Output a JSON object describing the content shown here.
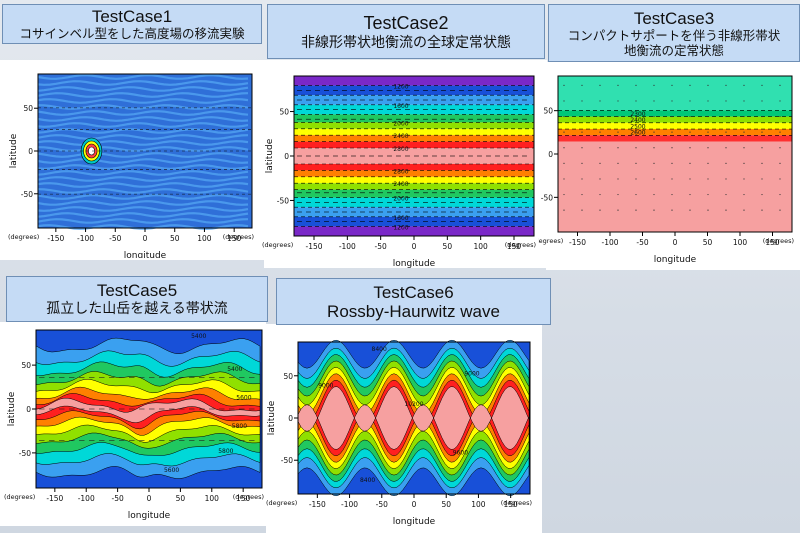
{
  "chart_data": [
    {
      "id": "tc1",
      "type": "heatmap",
      "title": "TestCase1",
      "subtitle": "コサインベル型をした高度場の移流実験",
      "xlabel": "longitude",
      "ylabel": "latitude",
      "x_unit": "(degrees)",
      "y_unit": "(degrees)",
      "xlim": [
        -180,
        180
      ],
      "ylim": [
        -90,
        90
      ],
      "xticks": [
        "-150",
        "-100",
        "-50",
        "0",
        "50",
        "100",
        "150"
      ],
      "yticks": [
        "50",
        "0",
        "-50"
      ],
      "contour_labels": [],
      "colors": [
        "#2f6fd8",
        "#4fa0f0",
        "#58b8f8",
        "#00c8c8",
        "#ffff00",
        "#ff4040"
      ]
    },
    {
      "id": "tc2",
      "type": "heatmap",
      "title": "TestCase2",
      "subtitle": "非線形帯状地衡流の全球定常状態",
      "xlabel": "longitude",
      "ylabel": "latitude",
      "x_unit": "(degrees)",
      "y_unit": "(degrees)",
      "xlim": [
        -180,
        180
      ],
      "ylim": [
        -90,
        90
      ],
      "xticks": [
        "-150",
        "-100",
        "-50",
        "0",
        "50",
        "100",
        "150"
      ],
      "yticks": [
        "50",
        "0",
        "-50"
      ],
      "contour_labels": [
        "1200",
        "1600",
        "2000",
        "2400",
        "2800",
        "2800",
        "2400",
        "2000",
        "1600",
        "1200"
      ],
      "colors": [
        "#7a28c8",
        "#1850d8",
        "#3aa0f0",
        "#00d8d8",
        "#20c860",
        "#90e000",
        "#ffff00",
        "#ff8000",
        "#ff2020",
        "#f6a0a0"
      ]
    },
    {
      "id": "tc3",
      "type": "heatmap",
      "title": "TestCase3",
      "subtitle": "コンパクトサポートを伴う非線形帯状地衡流の定常状態",
      "subtitle_line2": "地衡流の定常状態",
      "subtitle_line1": "コンパクトサポートを伴う非線形帯状",
      "xlabel": "longitude",
      "ylabel": "latitude",
      "x_unit": "(degrees)",
      "y_unit": "(degrees)",
      "xlim": [
        -180,
        180
      ],
      "ylim": [
        -90,
        90
      ],
      "xticks": [
        "-150",
        "-100",
        "-50",
        "0",
        "50",
        "100",
        "150"
      ],
      "yticks": [
        "50",
        "0",
        "-50"
      ],
      "contour_labels": [
        "2300",
        "2400",
        "2500",
        "2600"
      ],
      "colors": [
        "#30e0b0",
        "#00c878",
        "#90e000",
        "#ffff00",
        "#ff8000",
        "#ff3030",
        "#f6a0a0"
      ]
    },
    {
      "id": "tc5",
      "type": "heatmap",
      "title": "TestCase5",
      "subtitle": "孤立した山岳を越える帯状流",
      "xlabel": "longitude",
      "ylabel": "latitude",
      "x_unit": "(degrees)",
      "y_unit": "(degrees)",
      "xlim": [
        -180,
        180
      ],
      "ylim": [
        -90,
        90
      ],
      "xticks": [
        "-150",
        "-100",
        "-50",
        "0",
        "50",
        "100",
        "150"
      ],
      "yticks": [
        "50",
        "0",
        "-50"
      ],
      "contour_labels": [
        "5400",
        "5400",
        "5600",
        "5800",
        "5800",
        "5600"
      ],
      "colors": [
        "#1850d8",
        "#3aa0f0",
        "#00d8d8",
        "#20c860",
        "#90e000",
        "#ffff00",
        "#ff8000",
        "#ff2020",
        "#f6a0a0"
      ]
    },
    {
      "id": "tc6",
      "type": "heatmap",
      "title": "TestCase6",
      "subtitle": "Rossby-Haurwitz wave",
      "xlabel": "longitude",
      "ylabel": "latitude",
      "x_unit": "(degrees)",
      "y_unit": "(degrees)",
      "xlim": [
        -180,
        180
      ],
      "ylim": [
        -90,
        90
      ],
      "xticks": [
        "-150",
        "-100",
        "-50",
        "0",
        "50",
        "100",
        "150"
      ],
      "yticks": [
        "50",
        "0",
        "-50"
      ],
      "contour_labels": [
        "8400",
        "8400",
        "9000",
        "9600",
        "10200",
        "9000"
      ],
      "colors": [
        "#1850d8",
        "#3aa0f0",
        "#00d8d8",
        "#20c860",
        "#90e000",
        "#ffff00",
        "#ff8000",
        "#ff2020",
        "#f6a0a0"
      ]
    }
  ]
}
